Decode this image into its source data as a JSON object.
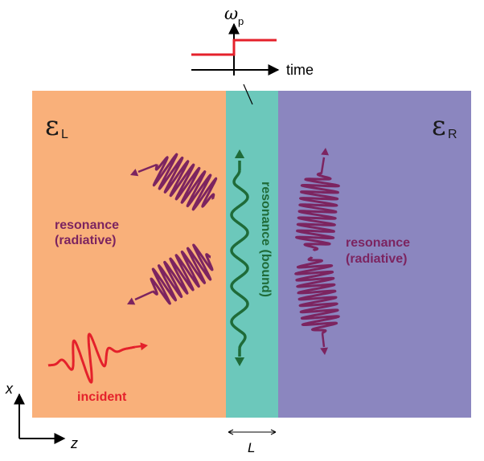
{
  "time_graph": {
    "omega_label": "ω",
    "omega_subscript": "p",
    "time_label": "time"
  },
  "left_region": {
    "epsilon_symbol": "ε",
    "epsilon_subscript": "L",
    "radiative_label_line1": "resonance",
    "radiative_label_line2": "(radiative)",
    "incident_label": "incident"
  },
  "middle_region": {
    "bound_label": "resonance (bound)"
  },
  "right_region": {
    "epsilon_symbol": "ε",
    "epsilon_subscript": "R",
    "radiative_label_line1": "resonance",
    "radiative_label_line2": "(radiative)"
  },
  "axes": {
    "x_label": "x",
    "z_label": "z",
    "width_label": "L"
  },
  "colors": {
    "left_medium": "#F9B07A",
    "slab": "#6CC8BB",
    "right_medium": "#8B86BF",
    "radiative": "#7C2460",
    "incident": "#E4212B",
    "bound": "#1F6B38",
    "step": "#E4212B"
  }
}
